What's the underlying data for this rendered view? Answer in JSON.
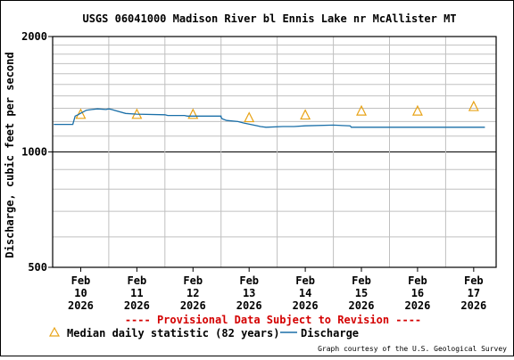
{
  "colors": {
    "series": "#1a6fa8",
    "marker": "#e8a317",
    "provisional": "#d40000",
    "grid": "#c0c0c0",
    "frame": "#000000"
  },
  "chart_data": {
    "type": "line",
    "title": "USGS 06041000 Madison River bl Ennis Lake nr McAllister MT",
    "ylabel": "Discharge, cubic feet per second",
    "yscale": "log",
    "ylim": [
      500,
      2000
    ],
    "yticks": [
      {
        "value": 500,
        "label": "500"
      },
      {
        "value": 1000,
        "label": "1000"
      },
      {
        "value": 2000,
        "label": "2000"
      }
    ],
    "xlim": [
      -0.5,
      7.4
    ],
    "x_units": "days from Feb 10 2026 00:00",
    "xticks": [
      {
        "x": 0,
        "label": [
          "Feb",
          "10",
          "2026"
        ]
      },
      {
        "x": 1,
        "label": [
          "Feb",
          "11",
          "2026"
        ]
      },
      {
        "x": 2,
        "label": [
          "Feb",
          "12",
          "2026"
        ]
      },
      {
        "x": 3,
        "label": [
          "Feb",
          "13",
          "2026"
        ]
      },
      {
        "x": 4,
        "label": [
          "Feb",
          "14",
          "2026"
        ]
      },
      {
        "x": 5,
        "label": [
          "Feb",
          "15",
          "2026"
        ]
      },
      {
        "x": 6,
        "label": [
          "Feb",
          "16",
          "2026"
        ]
      },
      {
        "x": 7,
        "label": [
          "Feb",
          "17",
          "2026"
        ]
      }
    ],
    "grid": true,
    "series": [
      {
        "name": "Discharge",
        "color": "#1a6fa8",
        "points": [
          [
            -0.48,
            1180
          ],
          [
            -0.14,
            1180
          ],
          [
            -0.12,
            1210
          ],
          [
            -0.1,
            1240
          ],
          [
            -0.05,
            1250
          ],
          [
            0.1,
            1285
          ],
          [
            0.2,
            1290
          ],
          [
            0.3,
            1295
          ],
          [
            0.45,
            1290
          ],
          [
            0.5,
            1295
          ],
          [
            0.55,
            1290
          ],
          [
            0.8,
            1260
          ],
          [
            1.0,
            1255
          ],
          [
            1.5,
            1250
          ],
          [
            1.55,
            1245
          ],
          [
            1.85,
            1245
          ],
          [
            1.9,
            1240
          ],
          [
            2.5,
            1240
          ],
          [
            2.5,
            1232
          ],
          [
            2.52,
            1220
          ],
          [
            2.6,
            1208
          ],
          [
            2.8,
            1200
          ],
          [
            2.9,
            1190
          ],
          [
            3.15,
            1170
          ],
          [
            3.2,
            1165
          ],
          [
            3.3,
            1160
          ],
          [
            3.6,
            1165
          ],
          [
            3.8,
            1165
          ],
          [
            4.0,
            1170
          ],
          [
            4.5,
            1175
          ],
          [
            4.8,
            1170
          ],
          [
            4.82,
            1160
          ],
          [
            5.0,
            1160
          ],
          [
            5.5,
            1160
          ],
          [
            6.0,
            1160
          ],
          [
            6.5,
            1160
          ],
          [
            7.2,
            1160
          ]
        ]
      }
    ],
    "markers": {
      "name": "Median daily statistic (82 years)",
      "color": "#e8a317",
      "points": [
        [
          0.0,
          1250
        ],
        [
          1.0,
          1250
        ],
        [
          2.0,
          1250
        ],
        [
          3.0,
          1225
        ],
        [
          4.0,
          1245
        ],
        [
          5.0,
          1275
        ],
        [
          6.0,
          1275
        ],
        [
          7.0,
          1310
        ]
      ]
    },
    "legend": {
      "position": "bottom",
      "entries": [
        "Median daily statistic (82 years)",
        "Discharge"
      ]
    },
    "provisional_note": "---- Provisional Data Subject to Revision ----",
    "credit": "Graph courtesy of the U.S. Geological Survey"
  }
}
